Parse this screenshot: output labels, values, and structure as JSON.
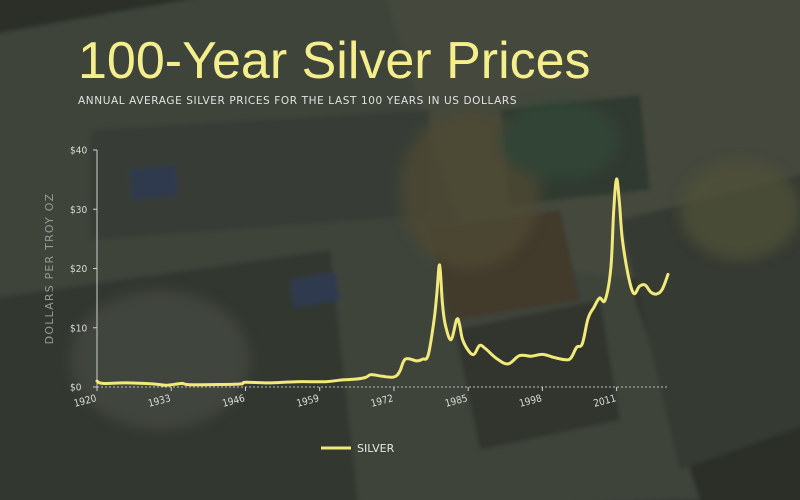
{
  "header": {
    "title": "100-Year Silver Prices",
    "subtitle": "Annual average silver prices for the last 100 years in US dollars"
  },
  "colors": {
    "title": "#f5ee8c",
    "line": "#f2e97a",
    "background": "#2f3330"
  },
  "background_image": "banknotes-photo",
  "chart_data": {
    "type": "line",
    "title": "100-Year Silver Prices",
    "subtitle": "Annual average silver prices for the last 100 years in US dollars",
    "xlabel": "",
    "ylabel": "Dollars per troy oz",
    "xlim": [
      1920,
      2020
    ],
    "ylim": [
      0,
      40
    ],
    "x_ticks": [
      1920,
      1933,
      1946,
      1959,
      1972,
      1985,
      1998,
      2011
    ],
    "x_tick_labels": [
      "1920",
      "1933",
      "1946",
      "1959",
      "1972",
      "1985",
      "1998",
      "2011"
    ],
    "y_ticks": [
      0,
      10,
      20,
      30,
      40
    ],
    "y_tick_labels": [
      "$0",
      "$10",
      "$20",
      "$30",
      "$40"
    ],
    "grid": false,
    "legend": "bottom-center",
    "series": [
      {
        "name": "SILVER",
        "x": [
          1920,
          1921,
          1925,
          1930,
          1932,
          1934,
          1935,
          1936,
          1940,
          1945,
          1946,
          1950,
          1955,
          1960,
          1963,
          1965,
          1967,
          1968,
          1970,
          1972,
          1973,
          1974,
          1976,
          1977,
          1978,
          1979,
          1979.5,
          1980,
          1980.5,
          1981,
          1982,
          1983,
          1983.5,
          1984,
          1985,
          1986,
          1987,
          1988,
          1990,
          1992,
          1994,
          1996,
          1998,
          2000,
          2002,
          2003,
          2004,
          2005,
          2006,
          2007,
          2008,
          2009,
          2010,
          2010.5,
          2011,
          2011.5,
          2012,
          2013,
          2014,
          2015,
          2016,
          2017,
          2018,
          2019,
          2020
        ],
        "values": [
          1.0,
          0.6,
          0.7,
          0.5,
          0.3,
          0.5,
          0.6,
          0.4,
          0.4,
          0.5,
          0.8,
          0.7,
          0.9,
          0.9,
          1.2,
          1.3,
          1.6,
          2.1,
          1.8,
          1.7,
          2.6,
          4.7,
          4.4,
          4.7,
          5.4,
          11.1,
          15.5,
          20.6,
          14.0,
          10.5,
          8.0,
          11.4,
          10.5,
          8.1,
          6.2,
          5.5,
          7.0,
          6.5,
          4.8,
          3.9,
          5.3,
          5.2,
          5.5,
          5.0,
          4.6,
          4.9,
          6.7,
          7.3,
          11.6,
          13.4,
          15.0,
          14.7,
          20.2,
          30.0,
          35.1,
          31.0,
          25.0,
          19.0,
          15.8,
          17.0,
          17.2,
          16.0,
          15.7,
          16.5,
          19.0
        ]
      }
    ]
  }
}
